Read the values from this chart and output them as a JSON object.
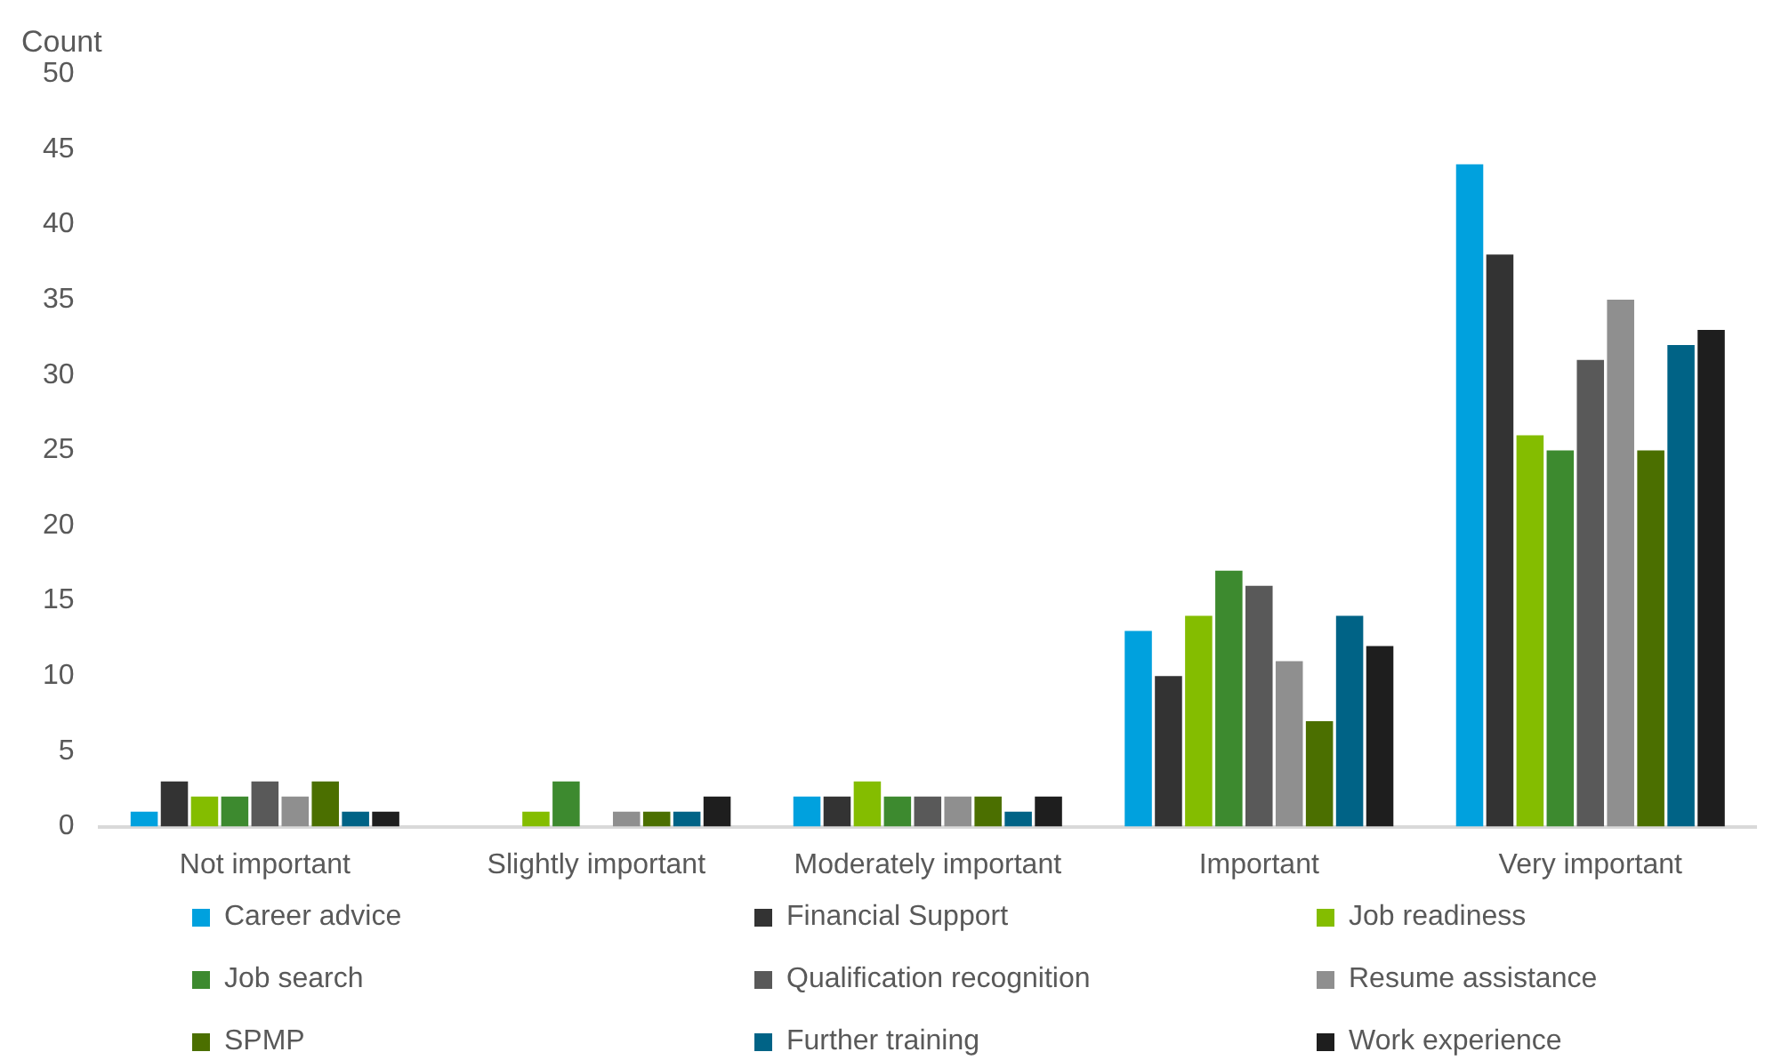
{
  "chart_data": {
    "type": "bar",
    "ylabel": "Count",
    "categories": [
      "Not important",
      "Slightly important",
      "Moderately important",
      "Important",
      "Very important"
    ],
    "series": [
      {
        "name": "Career advice",
        "color": "#00a1de",
        "values": [
          1,
          0,
          2,
          13,
          44
        ]
      },
      {
        "name": "Financial Support",
        "color": "#333333",
        "values": [
          3,
          0,
          2,
          10,
          38
        ]
      },
      {
        "name": "Job readiness",
        "color": "#84bd00",
        "values": [
          2,
          1,
          3,
          14,
          26
        ]
      },
      {
        "name": "Job search",
        "color": "#3d8a2f",
        "values": [
          2,
          3,
          2,
          17,
          25
        ]
      },
      {
        "name": "Qualification recognition",
        "color": "#595959",
        "values": [
          3,
          0,
          2,
          16,
          31
        ]
      },
      {
        "name": "Resume assistance",
        "color": "#8f8f8f",
        "values": [
          2,
          1,
          2,
          11,
          35
        ]
      },
      {
        "name": "SPMP",
        "color": "#4b6f00",
        "values": [
          3,
          1,
          2,
          7,
          25
        ]
      },
      {
        "name": "Further training",
        "color": "#006386",
        "values": [
          1,
          1,
          1,
          14,
          32
        ]
      },
      {
        "name": "Work experience",
        "color": "#1e1e1e",
        "values": [
          1,
          2,
          2,
          12,
          33
        ]
      }
    ],
    "ylim": [
      0,
      50
    ],
    "yticks": [
      0,
      5,
      10,
      15,
      20,
      25,
      30,
      35,
      40,
      45,
      50
    ],
    "grid": false,
    "legend": "bottom"
  }
}
